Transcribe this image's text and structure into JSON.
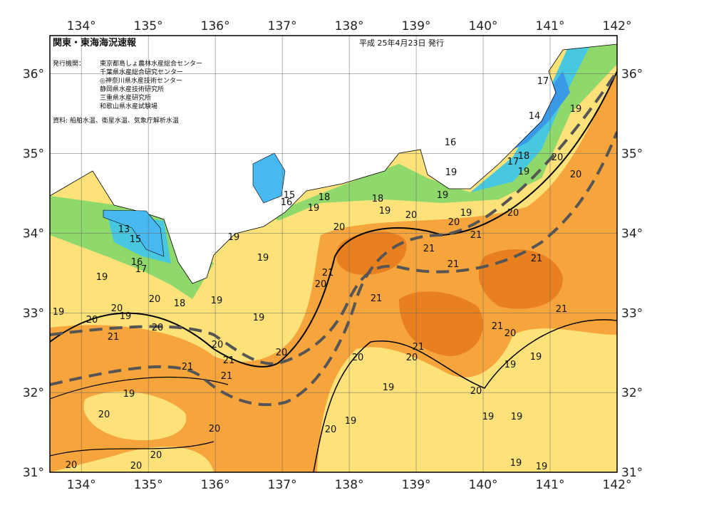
{
  "header": {
    "title": "関東・東海海況速報",
    "issued": "平成 25年4月23日 発行",
    "issuers_label": "発行機関：",
    "issuers": [
      "東京都島しょ農林水産総合センター",
      "千葉県水産総合研究センター",
      "◎神奈川県水産技術センター",
      "静岡県水産技術研究所",
      "三重県水産研究所",
      "和歌山県水産試験場"
    ],
    "source": "資料: 船舶水温、衛星水温、気象庁解析水温"
  },
  "map": {
    "xlim": [
      133.53,
      142
    ],
    "ylim": [
      31,
      36.48
    ],
    "xticks": [
      {
        "value": 134,
        "label": "134°"
      },
      {
        "value": 135,
        "label": "135°"
      },
      {
        "value": 136,
        "label": "136°"
      },
      {
        "value": 137,
        "label": "137°"
      },
      {
        "value": 138,
        "label": "138°"
      },
      {
        "value": 139,
        "label": "139°"
      },
      {
        "value": 140,
        "label": "140°"
      },
      {
        "value": 141,
        "label": "141°"
      },
      {
        "value": 142,
        "label": "142°"
      }
    ],
    "yticks": [
      {
        "value": 31,
        "label": "31°"
      },
      {
        "value": 32,
        "label": "32°"
      },
      {
        "value": 33,
        "label": "33°"
      },
      {
        "value": 34,
        "label": "34°"
      },
      {
        "value": 35,
        "label": "35°"
      },
      {
        "value": 36,
        "label": "36°"
      }
    ],
    "isotherm_labels": [
      17,
      19,
      14,
      16,
      18,
      17,
      19,
      20,
      20,
      19,
      15,
      16,
      18,
      18,
      19,
      19,
      19,
      20,
      20,
      19,
      20,
      20,
      21,
      13,
      15,
      19,
      21,
      19,
      21,
      21,
      16,
      17,
      21,
      19,
      20,
      21,
      20,
      18,
      19,
      20,
      19,
      19,
      20,
      19,
      21,
      20,
      21,
      21,
      20,
      20,
      21,
      20,
      20,
      21,
      20,
      21,
      19,
      19,
      21,
      19,
      20,
      19,
      20,
      19,
      20,
      20,
      19,
      19,
      20,
      20,
      20,
      19,
      19
    ]
  }
}
